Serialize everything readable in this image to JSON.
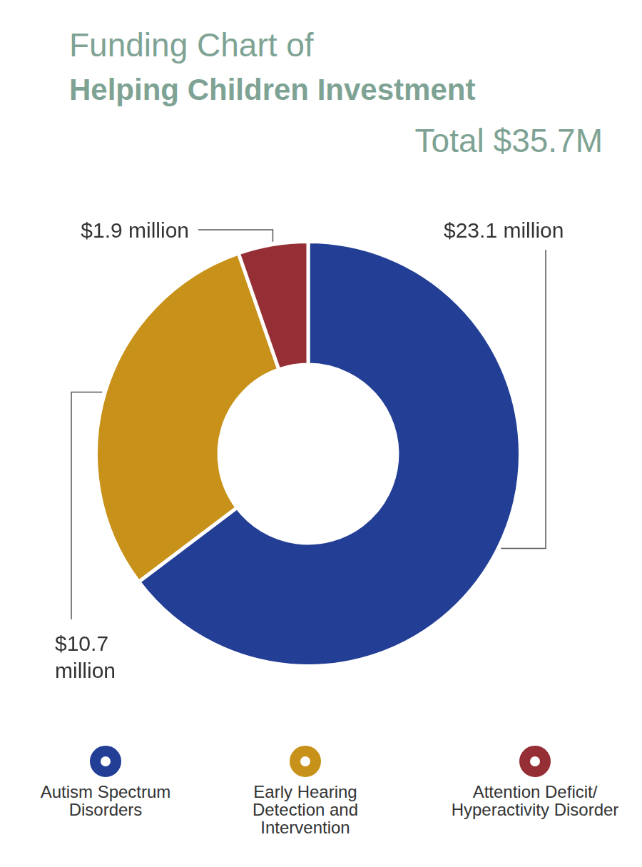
{
  "chart_data": {
    "type": "doughnut",
    "title": [
      "Funding Chart of",
      "Helping Children Investment"
    ],
    "subtitle": "Total $35.7M",
    "categories": [
      "Autism Spectrum Disorders",
      "Early Hearing Detection and Intervention",
      "Attention Deficit/ Hyperactivity Disorder"
    ],
    "values": [
      23.1,
      10.7,
      1.9
    ],
    "value_labels": [
      "$23.1 million",
      "$10.7 million",
      "$1.9 million"
    ],
    "colors": [
      "#223e95",
      "#c8921a",
      "#952f35"
    ],
    "data_labels": true,
    "legend": "bottom"
  }
}
